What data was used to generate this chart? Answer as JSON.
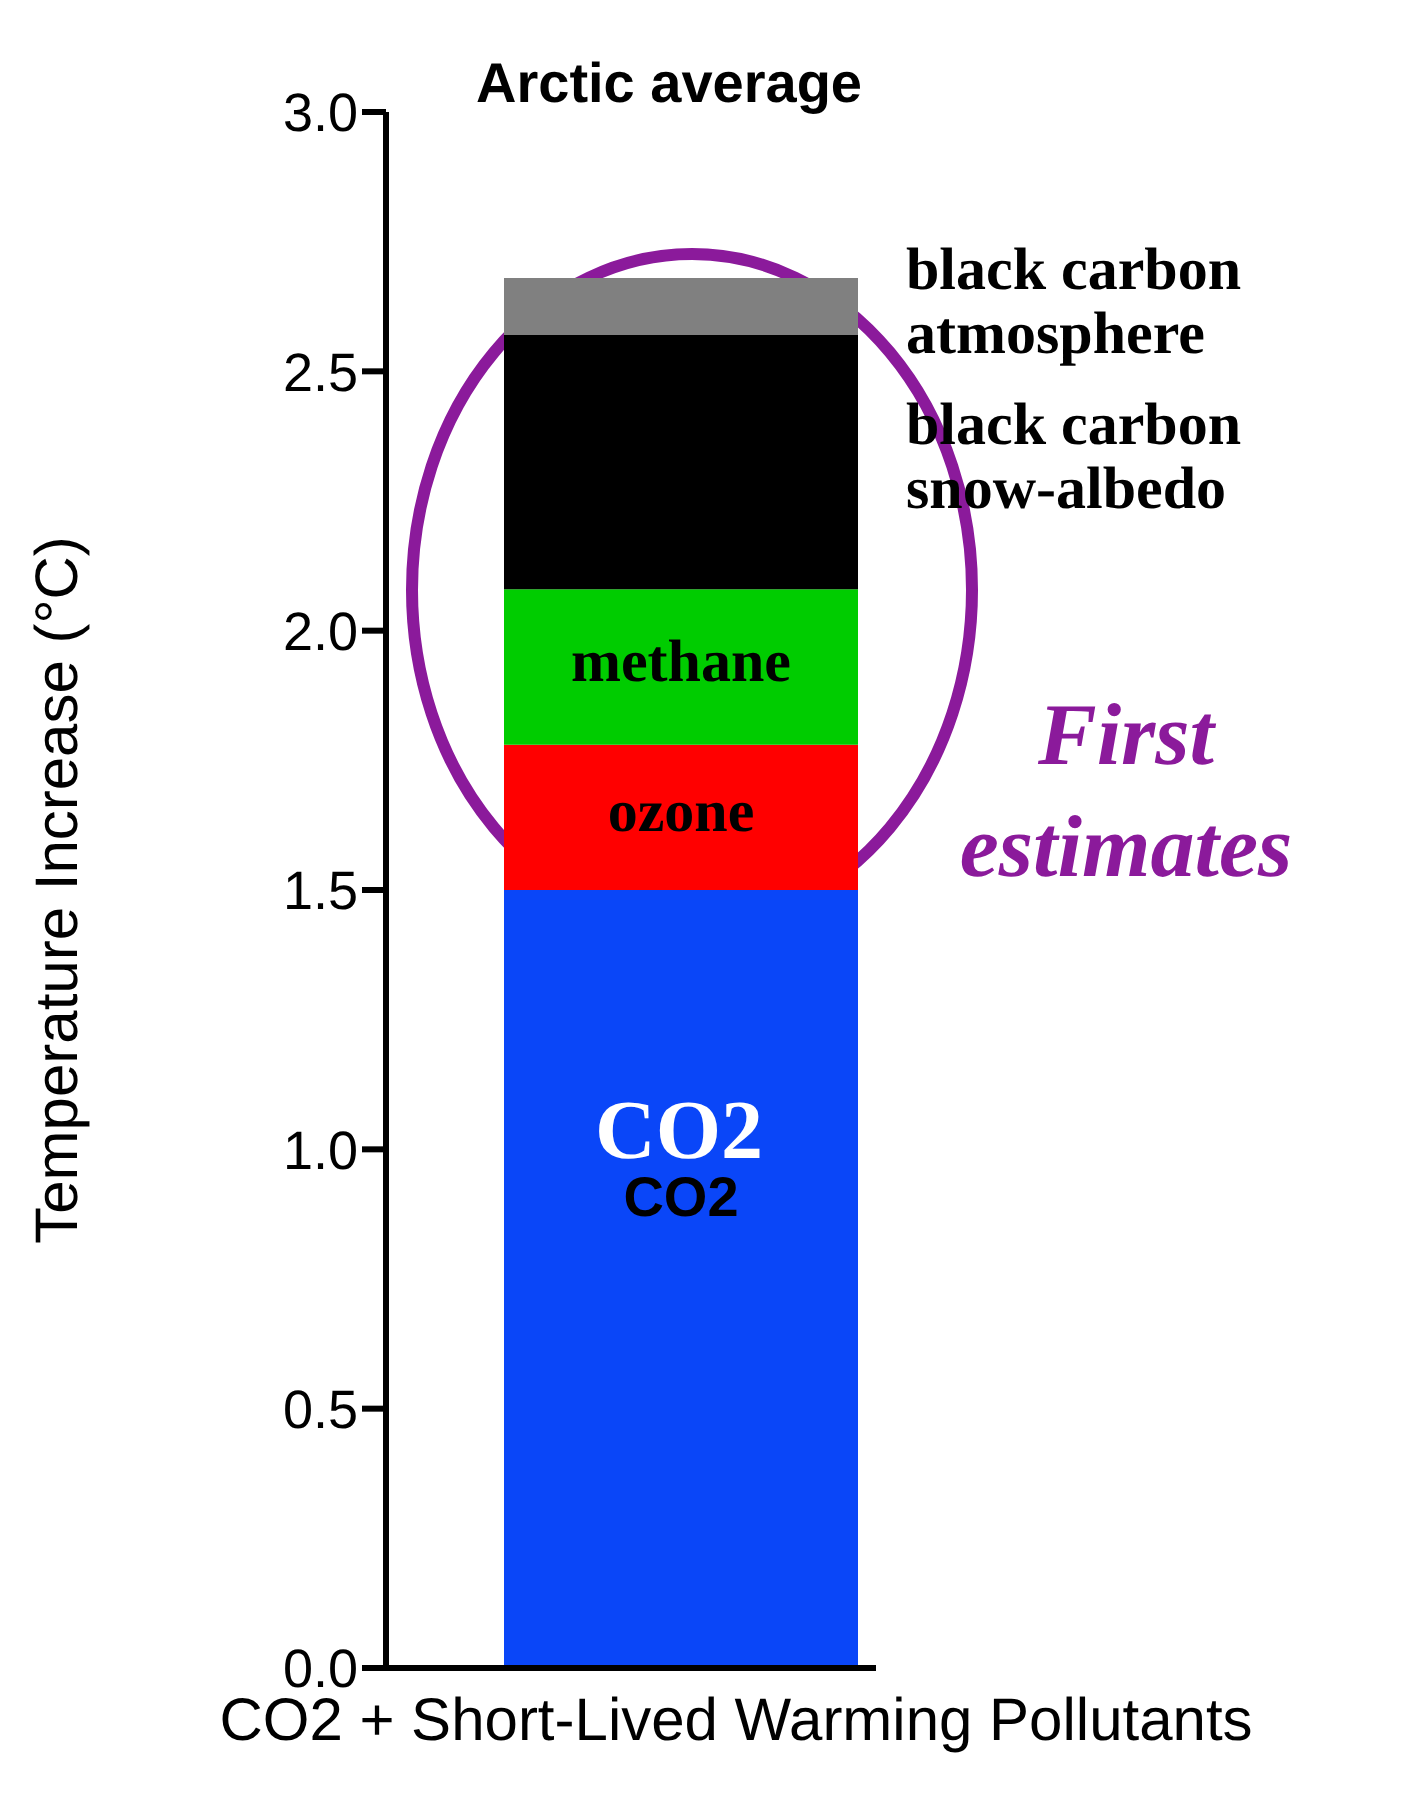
{
  "chart_data": {
    "type": "bar",
    "stacked": true,
    "title": "Arctic average",
    "xlabel": "CO2 + Short-Lived Warming Pollutants",
    "ylabel": "Temperature Increase (°C)",
    "categories": [
      null
    ],
    "series": [
      {
        "name": "CO2",
        "color": "#0a46f8",
        "values": [
          1.5
        ]
      },
      {
        "name": "ozone",
        "color": "#ff0000",
        "values": [
          0.28
        ]
      },
      {
        "name": "methane",
        "color": "#00cc00",
        "values": [
          0.3
        ]
      },
      {
        "name": "black carbon snow-albedo",
        "color": "#000000",
        "values": [
          0.49
        ]
      },
      {
        "name": "black carbon atmosphere",
        "color": "#808080",
        "values": [
          0.11
        ]
      }
    ],
    "ylim": [
      0,
      3
    ],
    "yticks": [
      {
        "value": 0,
        "label": "0.0"
      },
      {
        "value": 0.5,
        "label": "0.5"
      },
      {
        "value": 1,
        "label": "1.0"
      },
      {
        "value": 1.5,
        "label": "1.5"
      },
      {
        "value": 2,
        "label": "2.0"
      },
      {
        "value": 2.5,
        "label": "2.5"
      },
      {
        "value": 3,
        "label": "3.0"
      }
    ],
    "annotations": [
      "CO2",
      "First estimates"
    ],
    "legend": false,
    "grid": false
  }
}
